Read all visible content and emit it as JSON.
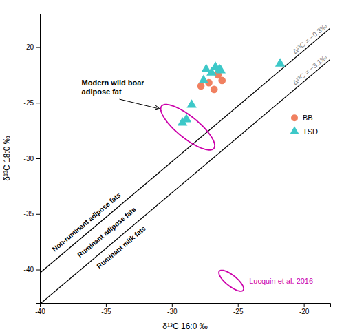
{
  "chart_data": {
    "type": "scatter",
    "xlabel": "δ¹³C 16:0 ‰",
    "ylabel": "δ¹³C 18:0 ‰",
    "xlim": [
      -40,
      -18
    ],
    "ylim": [
      -43,
      -17
    ],
    "xticks": [
      -40,
      -35,
      -30,
      -25,
      -20
    ],
    "yticks": [
      -40,
      -35,
      -30,
      -25,
      -20
    ],
    "grid": false,
    "legend": "right",
    "series": [
      {
        "name": "BB",
        "color": "#F08060",
        "marker": "circle",
        "x": [
          -27.8,
          -27.2,
          -26.5,
          -26.2,
          -26.8
        ],
        "values": [
          -23.5,
          -23.2,
          -22.5,
          -23.0,
          -23.8
        ]
      },
      {
        "name": "TSD",
        "color": "#3DC8C8",
        "marker": "triangle",
        "x": [
          -27.4,
          -27.0,
          -26.7,
          -26.4,
          -27.6,
          -26.3,
          -28.5,
          -29.2,
          -28.9,
          -21.8
        ],
        "values": [
          -22.0,
          -22.3,
          -21.8,
          -22.0,
          -23.0,
          -22.1,
          -25.2,
          -26.8,
          -26.5,
          -21.5
        ]
      }
    ],
    "lines": [
      {
        "label": "Δ¹³C = −0.3‰",
        "intercept": -0.3
      },
      {
        "label": "Δ¹³C = −3.1‰",
        "intercept": -3.1
      }
    ],
    "annotations": [
      {
        "text": "Non-ruminant adipose fats"
      },
      {
        "text": "Ruminant adipose fats"
      },
      {
        "text": "Ruminant milk fats"
      }
    ],
    "ellipses": [
      {
        "label": "Modern wild boar\nadipose fat",
        "color": "#CC00AA",
        "cx": -28.8,
        "cy": -27.2,
        "width": 1.8,
        "height": 5.5,
        "angle": 45
      },
      {
        "label": "Lucquin et al. 2016",
        "color": "#CC00AA",
        "cx": -25.5,
        "cy": -41.0,
        "width": 0.9,
        "height": 2.5,
        "angle": 45
      }
    ]
  }
}
